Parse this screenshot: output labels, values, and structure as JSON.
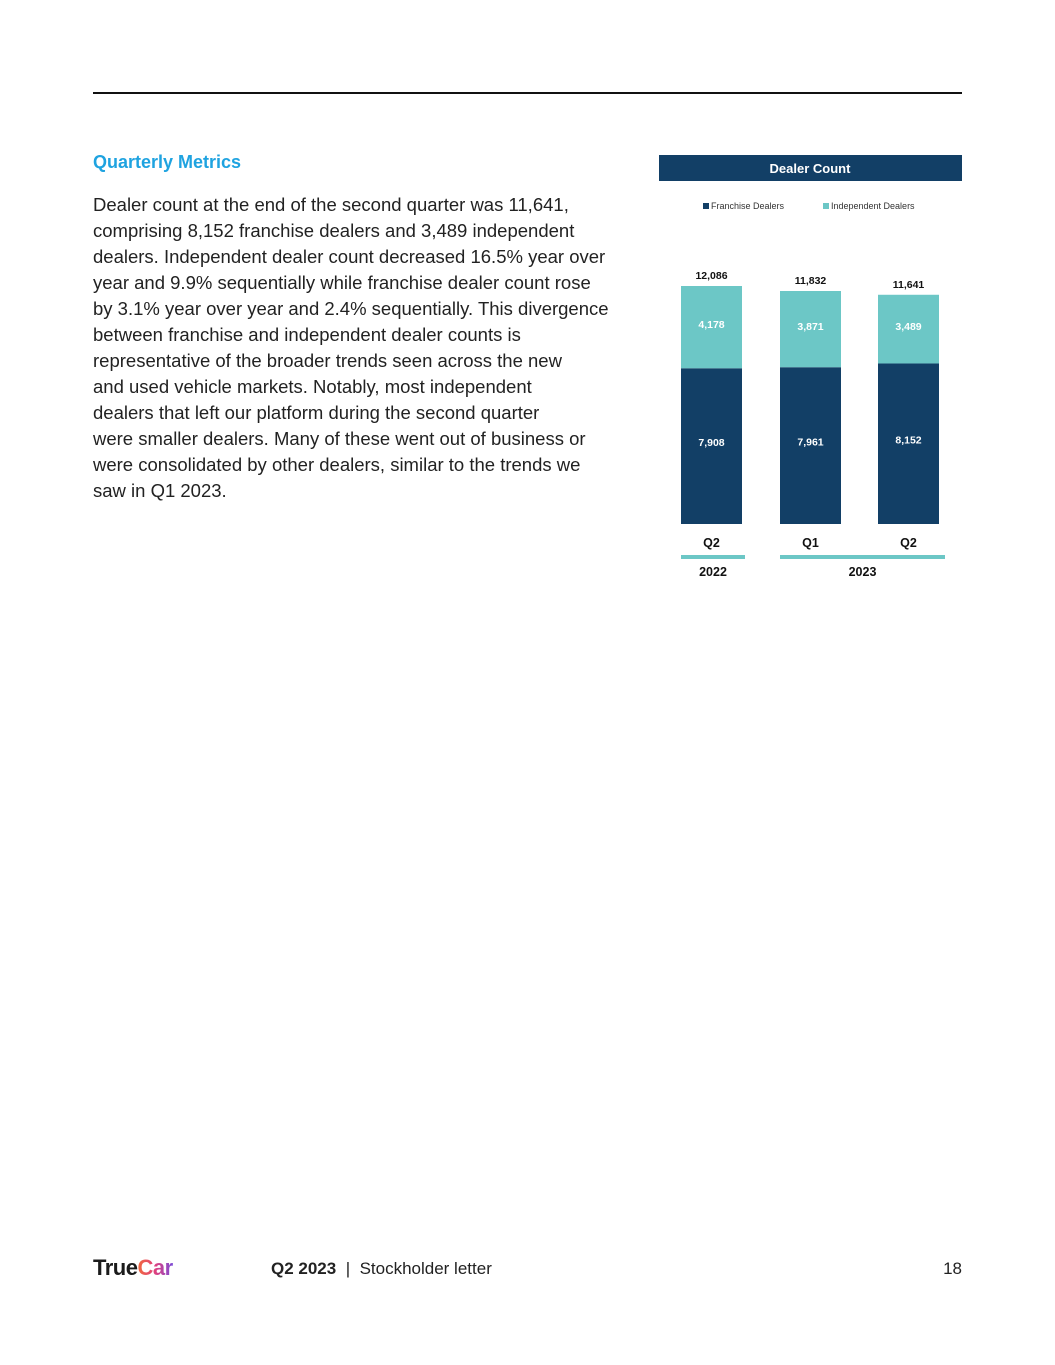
{
  "section": {
    "heading": "Quarterly Metrics",
    "paragraph_lines": [
      "Dealer count at the end of the second quarter was 11,641,",
      "comprising 8,152 franchise dealers and 3,489 independent",
      "dealers. Independent dealer count decreased 16.5% year over",
      "year and 9.9% sequentially while franchise dealer count rose",
      "by 3.1% year over year and 2.4% sequentially. This divergence",
      "between franchise and independent dealer counts is",
      "representative of the broader trends seen across the new",
      "and used vehicle markets. Notably, most independent",
      "dealers that left our platform during the second quarter",
      "were smaller dealers. Many of these went out of business or",
      "were consolidated by other dealers, similar to the trends we",
      "saw in Q1 2023."
    ]
  },
  "chart_data": {
    "type": "bar",
    "stacked": true,
    "title": "Dealer Count",
    "categories": [
      "Q2",
      "Q1",
      "Q2"
    ],
    "groups": [
      {
        "label": "2022",
        "span": 1
      },
      {
        "label": "2023",
        "span": 2
      }
    ],
    "series": [
      {
        "name": "Franchise Dealers",
        "color": "#123f66",
        "values": [
          7908,
          7961,
          8152
        ],
        "labels": [
          "7,908",
          "7,961",
          "8,152"
        ]
      },
      {
        "name": "Independent Dealers",
        "color": "#6cc7c6",
        "values": [
          4178,
          3871,
          3489
        ],
        "labels": [
          "4,178",
          "3,871",
          "3,489"
        ]
      }
    ],
    "totals": [
      12086,
      11832,
      11641
    ],
    "total_labels": [
      "12,086",
      "11,832",
      "11,641"
    ],
    "legend_position": "top",
    "grid": false,
    "ylim": [
      0,
      12086
    ]
  },
  "footer": {
    "logo_part1": "True",
    "logo_part2": "Car",
    "doc_period": "Q2 2023",
    "separator": "|",
    "doc_name": "Stockholder letter",
    "page_number": "18"
  }
}
